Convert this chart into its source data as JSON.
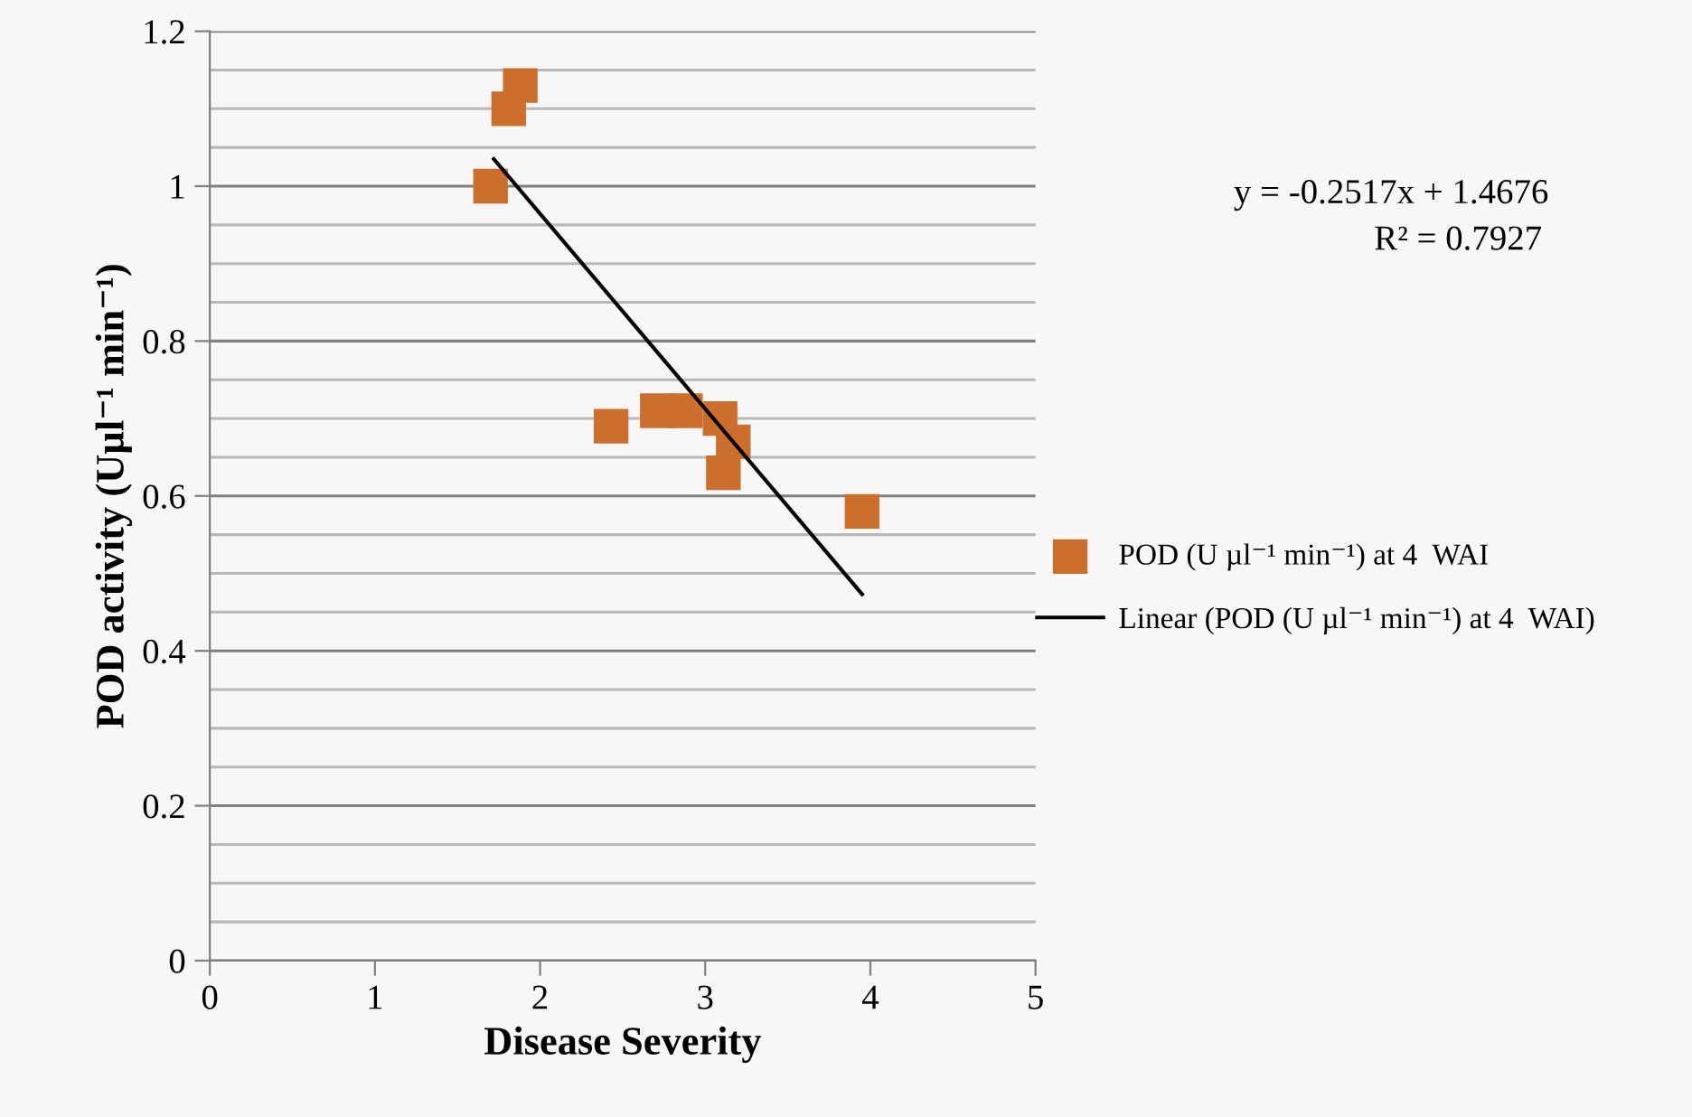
{
  "chart_data": {
    "type": "scatter",
    "xlabel": "Disease Severity",
    "ylabel": "POD activity (Uµl⁻¹ min⁻¹)",
    "xlim": [
      0,
      5
    ],
    "xticks": [
      0,
      1,
      2,
      3,
      4,
      5
    ],
    "ylim": [
      0,
      1.2
    ],
    "yticks": [
      0,
      {
        "value": 0.05,
        "label": null
      },
      {
        "value": 0.1,
        "label": null
      },
      {
        "value": 0.15,
        "label": null
      },
      0.2,
      {
        "value": 0.25,
        "label": null
      },
      {
        "value": 0.3,
        "label": null
      },
      {
        "value": 0.35,
        "label": null
      },
      0.4,
      {
        "value": 0.45,
        "label": null
      },
      {
        "value": 0.5,
        "label": null
      },
      {
        "value": 0.55,
        "label": null
      },
      0.6,
      {
        "value": 0.65,
        "label": null
      },
      {
        "value": 0.7,
        "label": null
      },
      {
        "value": 0.75,
        "label": null
      },
      0.8,
      {
        "value": 0.85,
        "label": null
      },
      {
        "value": 0.9,
        "label": null
      },
      {
        "value": 0.95,
        "label": null
      },
      1,
      {
        "value": 1.05,
        "label": null
      },
      {
        "value": 1.1,
        "label": null
      },
      {
        "value": 1.15,
        "label": null
      },
      1.2
    ],
    "grid": "y",
    "legend": "right",
    "marker": "square",
    "series": [
      {
        "name": "POD (U µl⁻¹ min⁻¹) at 4  WAI",
        "color": "#cc6e2c",
        "x": [
          1.7,
          1.81,
          1.88,
          2.43,
          2.71,
          2.88,
          3.09,
          3.17,
          3.11,
          3.95
        ],
        "values": [
          1.0,
          1.1,
          1.13,
          0.69,
          0.71,
          0.71,
          0.7,
          0.67,
          0.63,
          0.58
        ]
      },
      {
        "name": "Linear (POD (U µl⁻¹ min⁻¹) at 4  WAI)",
        "type": "line",
        "color": "#000000",
        "marker": "none",
        "x": [
          1.72,
          3.95
        ],
        "values": [
          1.035,
          0.473
        ]
      }
    ],
    "annotations": [
      "y = -0.2517x + 1.4676",
      "R² = 0.7927"
    ]
  }
}
